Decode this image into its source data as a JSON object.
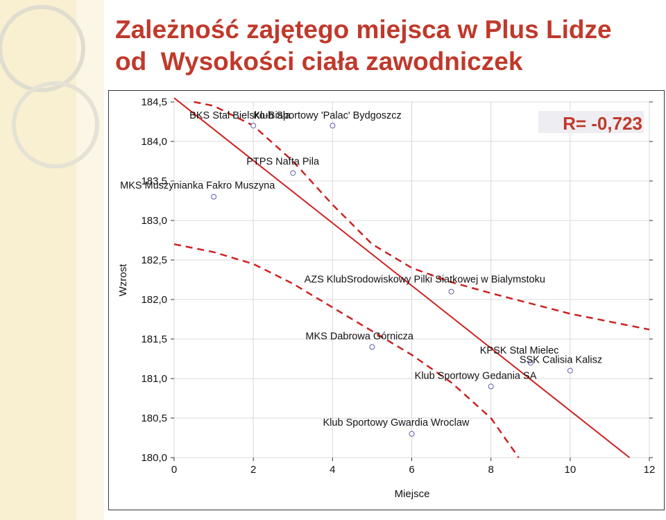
{
  "slide": {
    "title_line1": "Zależność zajętego miejsca w Plus Lidze",
    "title_line2": "od  Wysokości ciała zawodniczek"
  },
  "colors": {
    "title": "#c0392b",
    "regression": "#cc2222",
    "point": "#5a5aa8",
    "background": "#f8f0d0"
  },
  "chart_data": {
    "type": "scatter",
    "title": "",
    "xlabel": "Miejsce",
    "ylabel": "Wzrost",
    "xlim": [
      0,
      12
    ],
    "ylim": [
      180.0,
      184.5
    ],
    "xticks": [
      0,
      2,
      4,
      6,
      8,
      10,
      12
    ],
    "xtick_labels": [
      "0",
      "2",
      "4",
      "6",
      "8",
      "10",
      "12"
    ],
    "yticks": [
      180.0,
      180.5,
      181.0,
      181.5,
      182.0,
      182.5,
      183.0,
      183.5,
      184.0,
      184.5
    ],
    "ytick_labels": [
      "180,0",
      "180,5",
      "181,0",
      "181,5",
      "182,0",
      "182,5",
      "183,0",
      "183,5",
      "184,0",
      "184,5"
    ],
    "grid": true,
    "annotation": "R= -0,723",
    "points": [
      {
        "x": 1,
        "y": 183.3,
        "label": "MKS Muszynianka Fakro Muszyna"
      },
      {
        "x": 2,
        "y": 184.2,
        "label": "BKS Stal Bielsko-Biala"
      },
      {
        "x": 3,
        "y": 183.6,
        "label": "PTPS Nafta Pila"
      },
      {
        "x": 4,
        "y": 184.2,
        "label": "Klub Sportowy 'Palac' Bydgoszcz"
      },
      {
        "x": 5,
        "y": 181.4,
        "label": "MKS Dabrowa Górnicza"
      },
      {
        "x": 6,
        "y": 180.3,
        "label": "Klub Sportowy Gwardia Wroclaw"
      },
      {
        "x": 7,
        "y": 182.1,
        "label": "AZS KlubSrodowiskowy Pilki Siatkowej w Bialymstoku"
      },
      {
        "x": 8,
        "y": 180.9,
        "label": "Klub Sportowy Gedania SA"
      },
      {
        "x": 9,
        "y": 181.2,
        "label": "KPSK Stal Mielec"
      },
      {
        "x": 10,
        "y": 181.1,
        "label": "SSK Calisia Kalisz"
      }
    ],
    "regression_line": {
      "x": [
        0,
        11.5
      ],
      "y": [
        184.55,
        180.0
      ]
    },
    "confidence_upper": {
      "x": [
        0.5,
        1,
        2,
        3,
        4,
        5,
        6,
        7,
        8,
        9,
        10,
        11,
        12
      ],
      "y": [
        184.5,
        184.45,
        184.2,
        183.75,
        183.2,
        182.7,
        182.4,
        182.22,
        182.08,
        181.95,
        181.82,
        181.72,
        181.62
      ]
    },
    "confidence_lower": {
      "x": [
        0,
        1,
        2,
        3,
        4,
        5,
        6,
        7,
        8,
        8.7
      ],
      "y": [
        182.7,
        182.6,
        182.45,
        182.2,
        181.9,
        181.6,
        181.3,
        180.95,
        180.5,
        180.0
      ]
    }
  }
}
